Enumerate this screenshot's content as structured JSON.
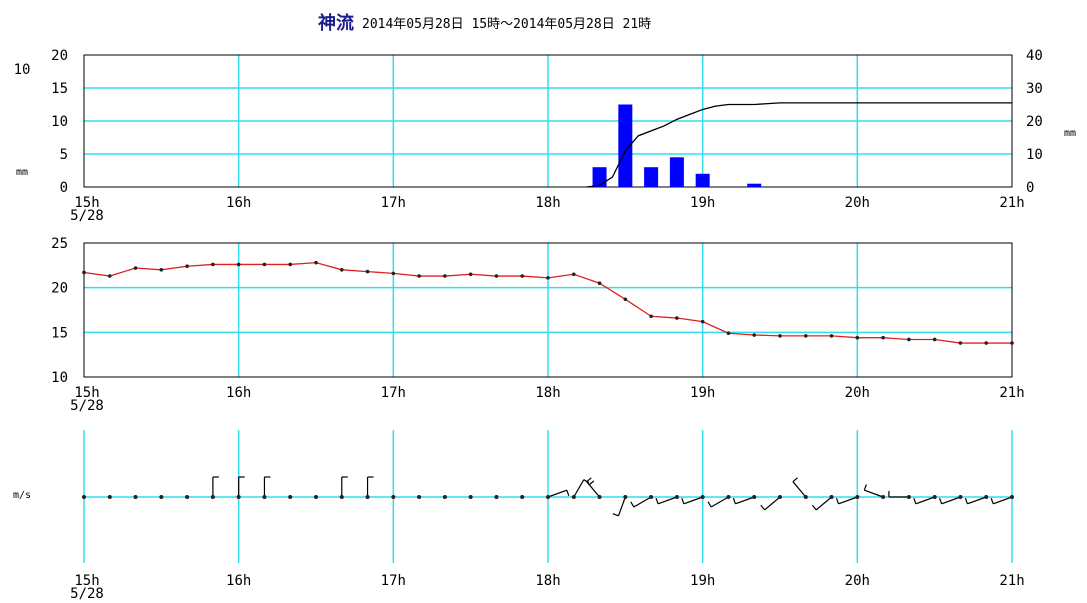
{
  "title": {
    "station": "神流",
    "period": "2014年05月28日 15時～2014年05月28日 21時"
  },
  "colors": {
    "grid": "#33ddee",
    "frame": "#000000",
    "rain_bar": "#0000ff",
    "cumulative_line": "#000000",
    "temperature_line": "#e02020",
    "wind": "#000000"
  },
  "x_axis": {
    "ticks": [
      "15h",
      "16h",
      "17h",
      "18h",
      "19h",
      "20h",
      "21h"
    ],
    "date_label": "5/28"
  },
  "chart_data": [
    {
      "type": "bar",
      "panel": "precipitation",
      "left_axis": {
        "unit": "mm",
        "unit_extra": "10",
        "ylim": [
          0,
          20
        ],
        "ticks": [
          "0",
          "5",
          "10",
          "15",
          "20"
        ]
      },
      "right_axis": {
        "unit": "mm",
        "ylim": [
          0,
          40
        ],
        "ticks": [
          "0",
          "10",
          "20",
          "30",
          "40"
        ]
      },
      "bar_series": {
        "x": [
          "18:20",
          "18:30",
          "18:40",
          "18:50",
          "19:00",
          "19:20"
        ],
        "values": [
          3,
          12.5,
          3,
          4.5,
          2,
          0.5
        ]
      },
      "cumulative_series": {
        "x": [
          "18:15",
          "18:20",
          "18:25",
          "18:30",
          "18:35",
          "18:40",
          "18:45",
          "18:50",
          "18:55",
          "19:00",
          "19:05",
          "19:10",
          "19:20",
          "19:30",
          "21:00"
        ],
        "values": [
          0,
          0.5,
          3,
          11,
          15.5,
          17,
          18.5,
          20.5,
          22,
          23.5,
          24.5,
          25,
          25,
          25.5,
          25.5
        ]
      }
    },
    {
      "type": "line",
      "panel": "temperature",
      "ylim": [
        10,
        25
      ],
      "ticks": [
        "10",
        "15",
        "20",
        "25"
      ],
      "x": [
        "15:00",
        "15:10",
        "15:20",
        "15:30",
        "15:40",
        "15:50",
        "16:00",
        "16:10",
        "16:20",
        "16:30",
        "16:40",
        "16:50",
        "17:00",
        "17:10",
        "17:20",
        "17:30",
        "17:40",
        "17:50",
        "18:00",
        "18:10",
        "18:20",
        "18:30",
        "18:40",
        "18:50",
        "19:00",
        "19:10",
        "19:20",
        "19:30",
        "19:40",
        "19:50",
        "20:00",
        "20:10",
        "20:20",
        "20:30",
        "20:40",
        "20:50",
        "21:00"
      ],
      "values": [
        21.7,
        21.3,
        22.2,
        22.0,
        22.4,
        22.6,
        22.6,
        22.6,
        22.6,
        22.8,
        22.0,
        21.8,
        21.6,
        21.3,
        21.3,
        21.5,
        21.3,
        21.3,
        21.1,
        21.5,
        20.5,
        18.7,
        16.8,
        16.6,
        16.2,
        14.9,
        14.7,
        14.6,
        14.6,
        14.6,
        14.4,
        14.4,
        14.2,
        14.2,
        13.8,
        13.8,
        13.8
      ]
    },
    {
      "type": "scatter",
      "panel": "wind",
      "unit": "m/s",
      "x": [
        "15:00",
        "15:10",
        "15:20",
        "15:30",
        "15:40",
        "15:50",
        "16:00",
        "16:10",
        "16:20",
        "16:30",
        "16:40",
        "16:50",
        "17:00",
        "17:10",
        "17:20",
        "17:30",
        "17:40",
        "17:50",
        "18:00",
        "18:10",
        "18:20",
        "18:30",
        "18:40",
        "18:50",
        "19:00",
        "19:10",
        "19:20",
        "19:30",
        "19:40",
        "19:50",
        "20:00",
        "20:10",
        "20:20",
        "20:30",
        "20:40",
        "20:50",
        "21:00"
      ],
      "direction_deg": [
        0,
        0,
        0,
        0,
        0,
        0,
        0,
        0,
        0,
        0,
        0,
        0,
        0,
        0,
        0,
        0,
        0,
        0,
        70,
        30,
        320,
        200,
        240,
        250,
        250,
        240,
        250,
        230,
        320,
        230,
        250,
        290,
        270,
        250,
        250,
        250,
        250
      ],
      "speed": [
        0,
        0,
        0,
        0,
        0,
        1,
        1,
        1,
        0,
        0,
        1,
        1,
        0,
        0,
        0,
        0,
        0,
        0,
        1,
        1,
        2,
        1,
        1,
        1,
        1,
        1,
        1,
        1,
        1,
        1,
        1,
        1,
        1,
        1,
        1,
        1,
        1
      ]
    }
  ]
}
